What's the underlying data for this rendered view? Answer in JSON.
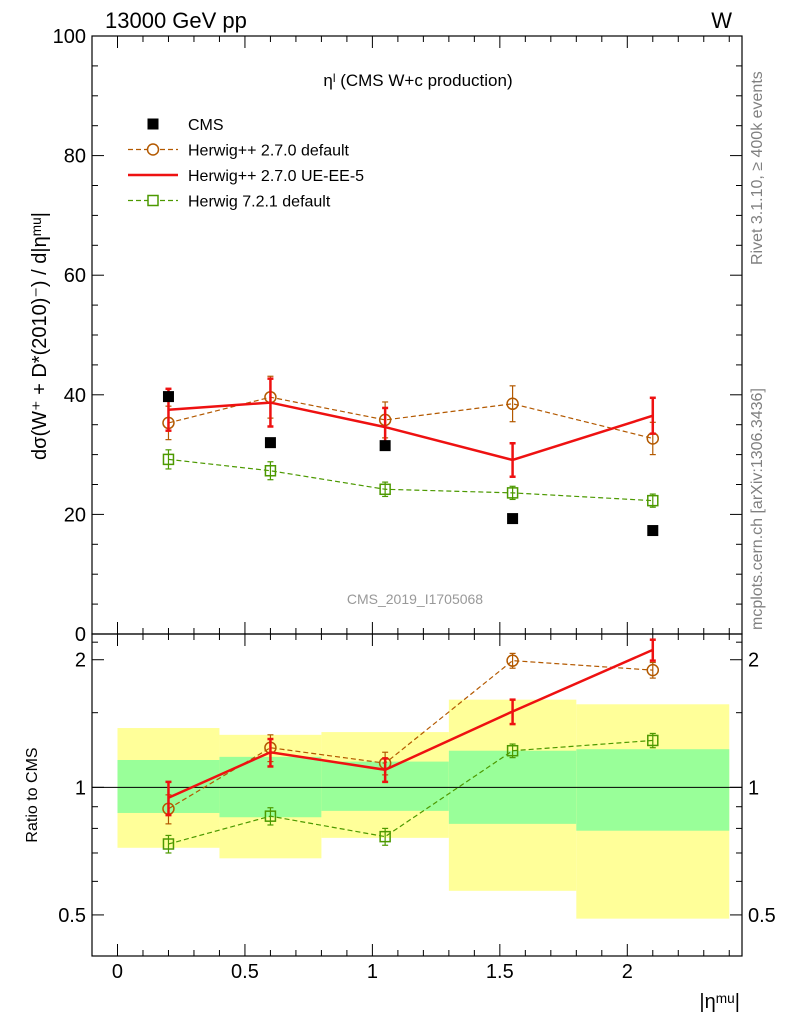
{
  "header": {
    "left": "13000 GeV pp",
    "right": "W"
  },
  "side_labels": {
    "rivet": "Rivet 3.1.10, ≥ 400k events",
    "mcplots": "mcplots.cern.ch [arXiv:1306.3436]"
  },
  "chart_data": [
    {
      "type": "scatter",
      "title": "ηˡ (CMS W+c production)",
      "watermark": "CMS_2019_I1705068",
      "ylabel": "dσ(W⁺ + D*(2010)⁻) / d|ηᵐᵘ|",
      "xlim": [
        -0.1,
        2.45
      ],
      "ylim": [
        0,
        100
      ],
      "yticks": [
        0,
        20,
        40,
        60,
        80,
        100
      ],
      "x": [
        0.2,
        0.6,
        1.05,
        1.55,
        2.1
      ],
      "series": [
        {
          "name": "CMS",
          "color": "#000000",
          "style": "square",
          "values": [
            39.7,
            32.0,
            31.5,
            19.3,
            17.3
          ]
        },
        {
          "name": "Herwig++ 2.7.0 default",
          "color": "#b35900",
          "style": "circle-dashed",
          "values": [
            35.3,
            39.6,
            35.8,
            38.5,
            32.7
          ],
          "errors": [
            2.8,
            3.5,
            3.0,
            3.0,
            2.7
          ]
        },
        {
          "name": "Herwig++ 2.7.0 UE-EE-5",
          "color": "#ee1111",
          "style": "solid",
          "values": [
            37.5,
            38.7,
            34.6,
            29.1,
            36.5
          ],
          "errors": [
            3.5,
            4.0,
            3.2,
            2.8,
            3.0
          ]
        },
        {
          "name": "Herwig 7.2.1 default",
          "color": "#4c9900",
          "style": "square-dashed",
          "values": [
            29.2,
            27.3,
            24.2,
            23.6,
            22.3
          ],
          "errors": [
            1.6,
            1.5,
            1.2,
            1.1,
            1.1
          ]
        }
      ]
    },
    {
      "type": "line",
      "ylabel": "Ratio to CMS",
      "xlabel": "|ηᵐᵘ|",
      "xlim": [
        -0.1,
        2.45
      ],
      "ylim": [
        0.4,
        2.3
      ],
      "ytick_labels": [
        "0.5",
        "1",
        "2"
      ],
      "xtick_labels": [
        "0",
        "0.5",
        "1",
        "1.5",
        "2"
      ],
      "bands": {
        "bins": [
          [
            0,
            0.4
          ],
          [
            0.4,
            0.8
          ],
          [
            0.8,
            1.3
          ],
          [
            1.3,
            1.8
          ],
          [
            1.8,
            2.4
          ]
        ],
        "inner": [
          [
            0.87,
            1.16
          ],
          [
            0.85,
            1.18
          ],
          [
            0.88,
            1.15
          ],
          [
            0.82,
            1.22
          ],
          [
            0.79,
            1.23
          ]
        ],
        "outer": [
          [
            0.72,
            1.38
          ],
          [
            0.68,
            1.33
          ],
          [
            0.76,
            1.35
          ],
          [
            0.57,
            1.61
          ],
          [
            0.49,
            1.57
          ]
        ],
        "inner_color": "#99ff99",
        "outer_color": "#ffff99"
      },
      "x": [
        0.2,
        0.6,
        1.05,
        1.55,
        2.1
      ],
      "series": [
        {
          "name": "Herwig++ 2.7.0 default",
          "color": "#b35900",
          "style": "circle-dashed",
          "values": [
            0.89,
            1.24,
            1.14,
            1.99,
            1.89
          ],
          "errors": [
            0.07,
            0.09,
            0.07,
            0.08,
            0.08
          ]
        },
        {
          "name": "Herwig++ 2.7.0 UE-EE-5",
          "color": "#ee1111",
          "style": "solid",
          "values": [
            0.945,
            1.21,
            1.1,
            1.51,
            2.11
          ],
          "errors": [
            0.085,
            0.09,
            0.07,
            0.1,
            0.12
          ]
        },
        {
          "name": "Herwig 7.2.1 default",
          "color": "#4c9900",
          "style": "square-dashed",
          "values": [
            0.735,
            0.855,
            0.765,
            1.22,
            1.29
          ],
          "errors": [
            0.035,
            0.04,
            0.035,
            0.045,
            0.05
          ]
        }
      ]
    }
  ]
}
